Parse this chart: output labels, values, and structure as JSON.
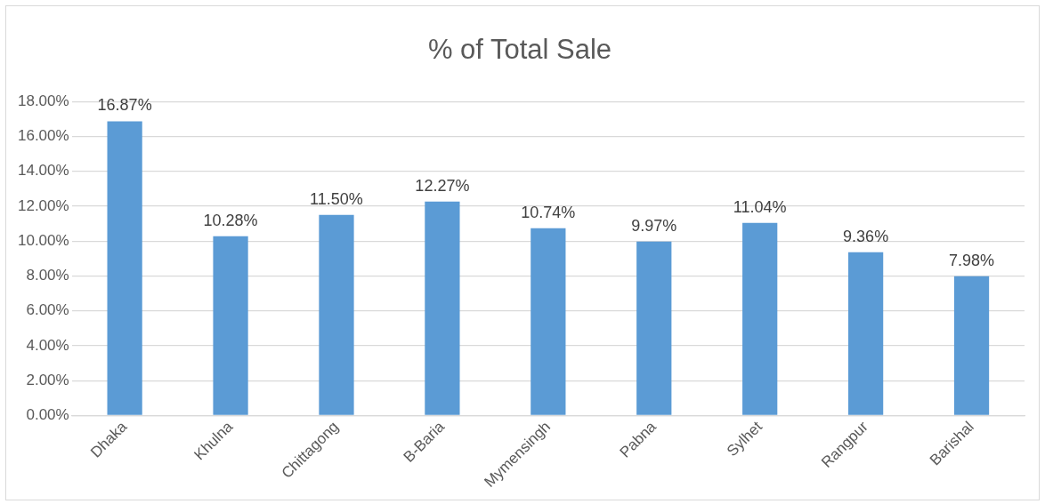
{
  "chart_data": {
    "type": "bar",
    "title": "% of Total Sale",
    "categories": [
      "Dhaka",
      "Khulna",
      "Chittagong",
      "B-Baria",
      "Mymensingh",
      "Pabna",
      "Sylhet",
      "Rangpur",
      "Barishal"
    ],
    "values": [
      16.87,
      10.28,
      11.5,
      12.27,
      10.74,
      9.97,
      11.04,
      9.36,
      7.98
    ],
    "value_labels": [
      "16.87%",
      "10.28%",
      "11.50%",
      "12.27%",
      "10.74%",
      "9.97%",
      "11.04%",
      "9.36%",
      "7.98%"
    ],
    "color": "#5b9bd5",
    "ylim": [
      0,
      18
    ],
    "yticks": [
      {
        "value": 0,
        "label": "0.00%"
      },
      {
        "value": 2,
        "label": "2.00%"
      },
      {
        "value": 4,
        "label": "4.00%"
      },
      {
        "value": 6,
        "label": "6.00%"
      },
      {
        "value": 8,
        "label": "8.00%"
      },
      {
        "value": 10,
        "label": "10.00%"
      },
      {
        "value": 12,
        "label": "12.00%"
      },
      {
        "value": 14,
        "label": "14.00%"
      },
      {
        "value": 16,
        "label": "16.00%"
      },
      {
        "value": 18,
        "label": "18.00%"
      }
    ],
    "grid": "y",
    "legend": false
  }
}
